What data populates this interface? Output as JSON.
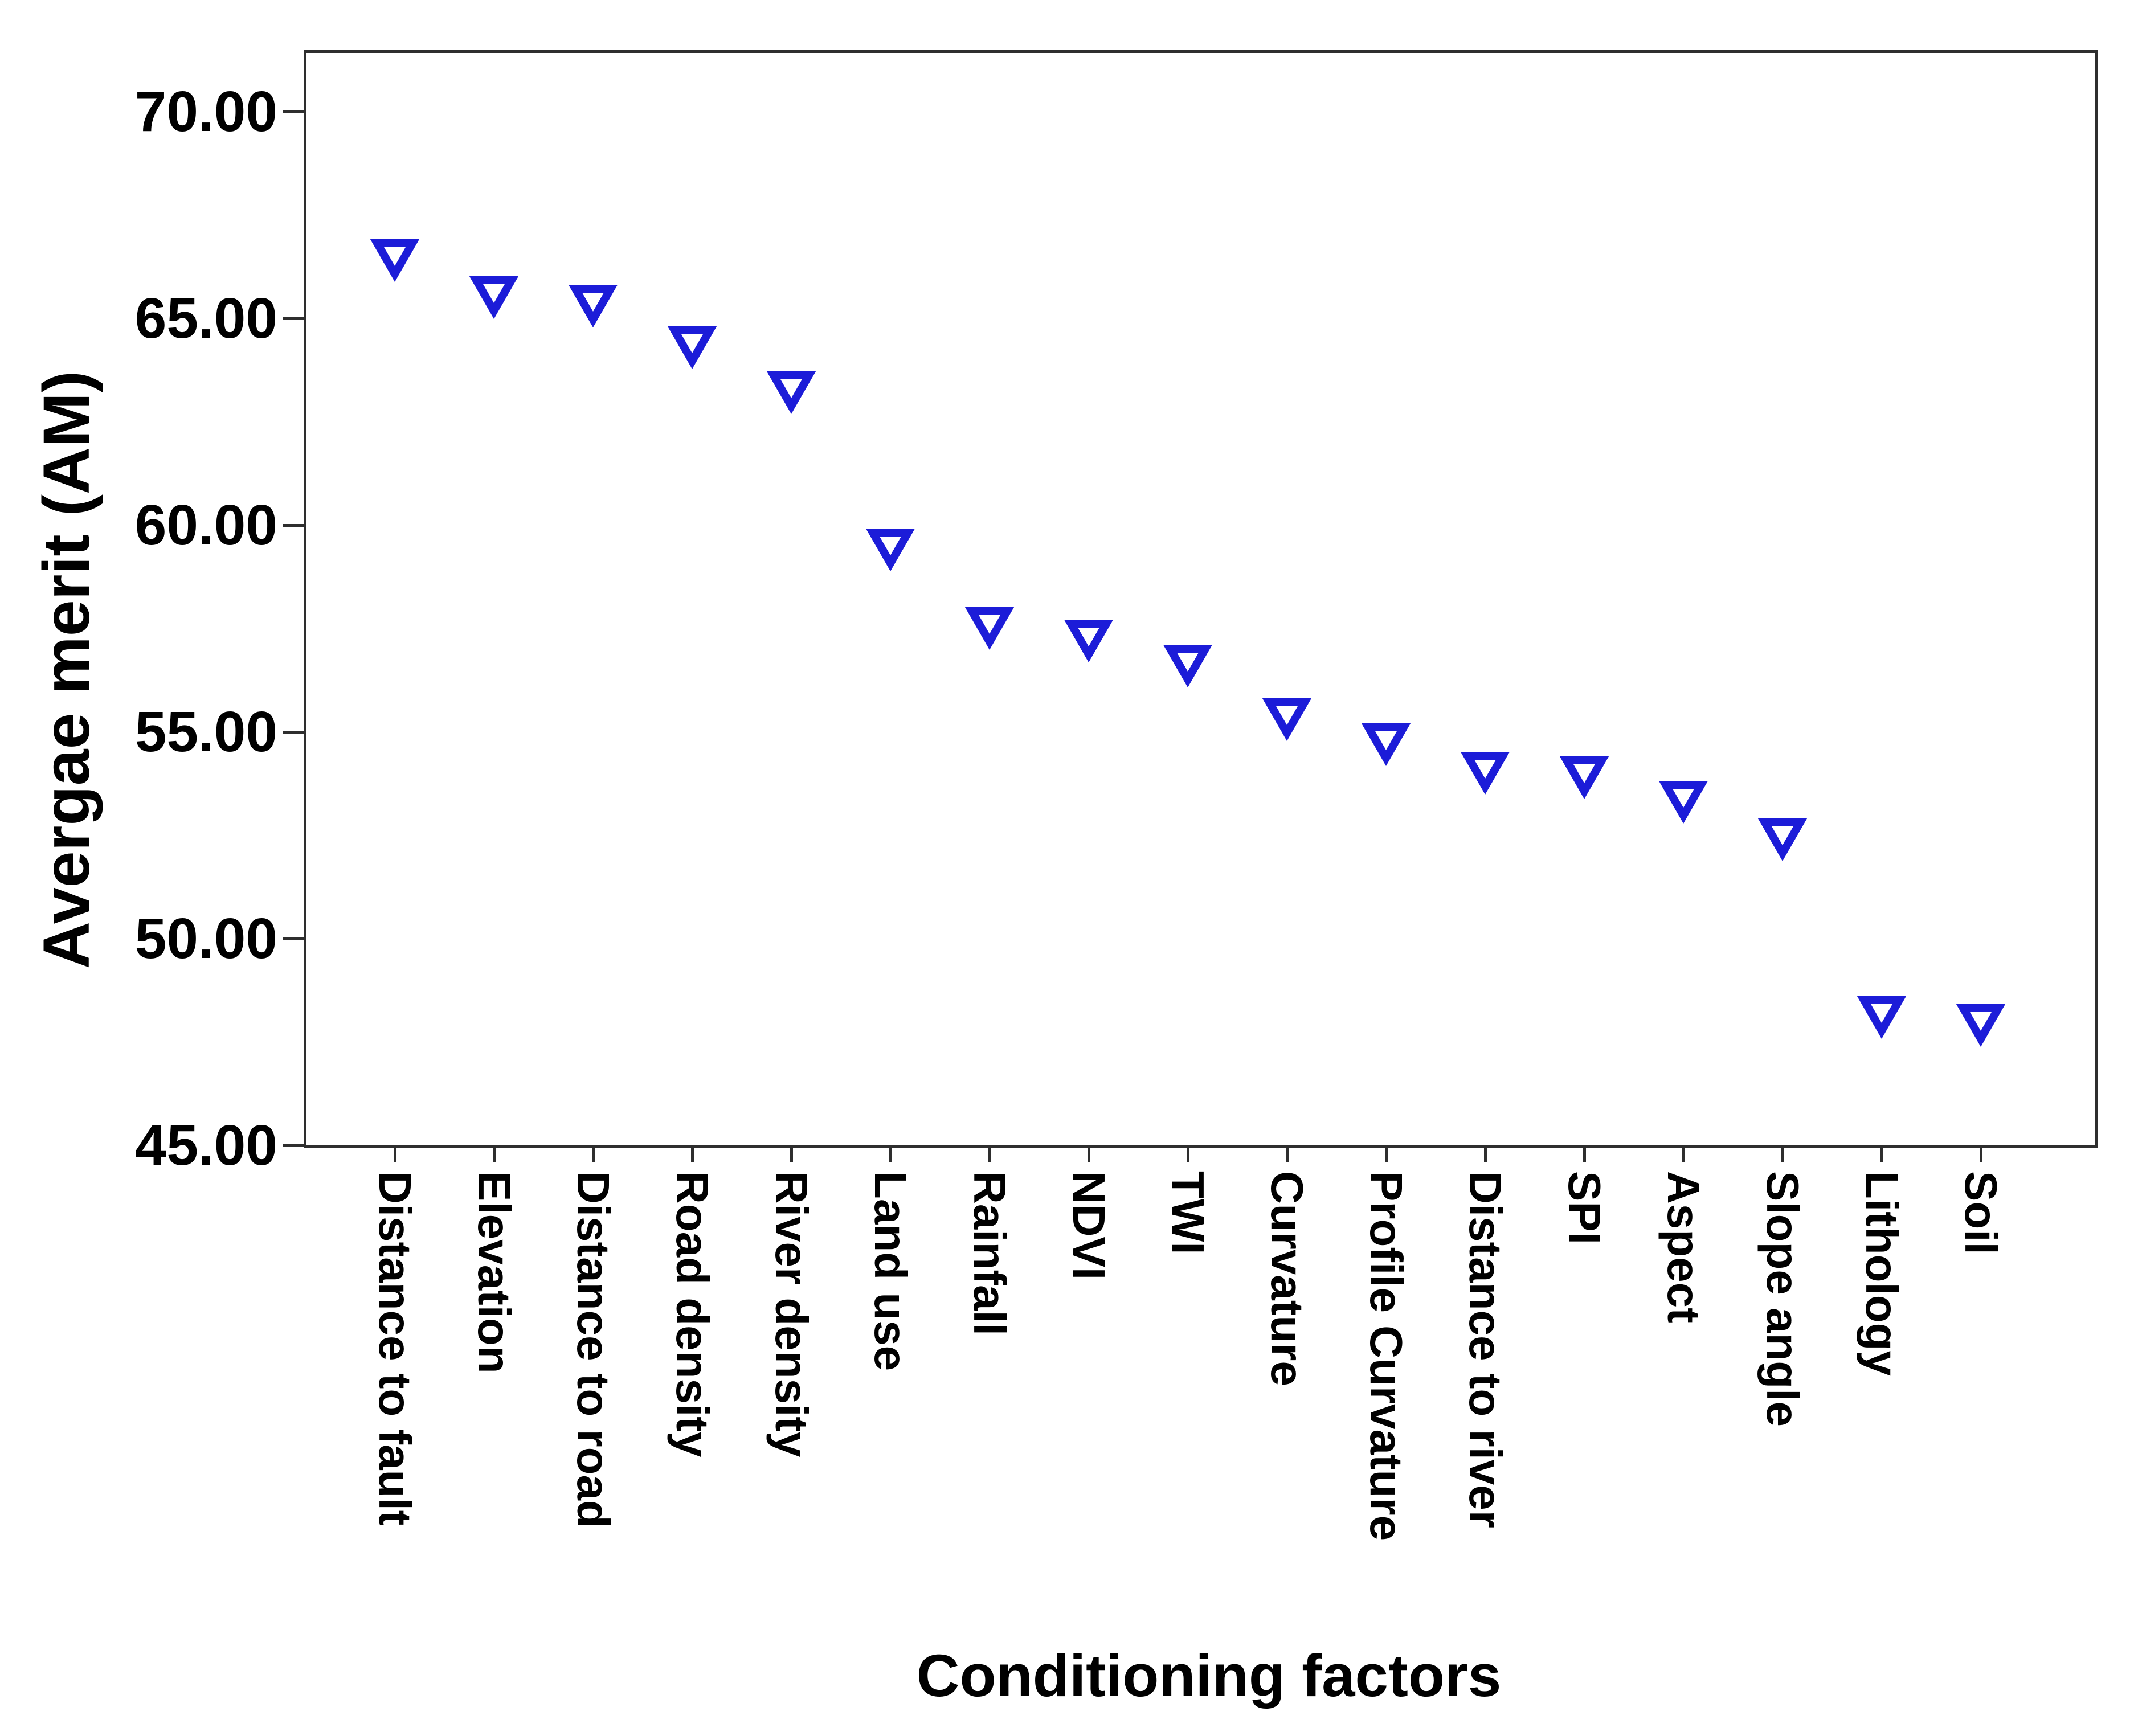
{
  "chart_data": {
    "type": "scatter",
    "title": "",
    "xlabel": "Conditioning factors",
    "ylabel": "Avergae merit (AM)",
    "ylim": [
      45,
      70
    ],
    "ytick_labels": [
      "70.00",
      "65.00",
      "60.00",
      "55.00",
      "50.00",
      "45.00"
    ],
    "grid": false,
    "legend": "none",
    "marker": "open-triangle-down",
    "marker_color": "#1c1cd8",
    "axis_color": "#2e2e2e",
    "categories": [
      "Distance to fault",
      "Elevation",
      "Distance to road",
      "Road density",
      "River density",
      "Land use",
      "Rainfall",
      "NDVI",
      "TWI",
      "Curvature",
      "Profile Curvature",
      "Distance to river",
      "SPI",
      "Aspect",
      "Slope angle",
      "Lithology",
      "Soil"
    ],
    "values": [
      66.5,
      65.6,
      65.4,
      64.4,
      63.3,
      59.5,
      57.6,
      57.3,
      56.7,
      55.4,
      54.8,
      54.1,
      54.0,
      53.4,
      52.5,
      48.2,
      48.0
    ]
  }
}
